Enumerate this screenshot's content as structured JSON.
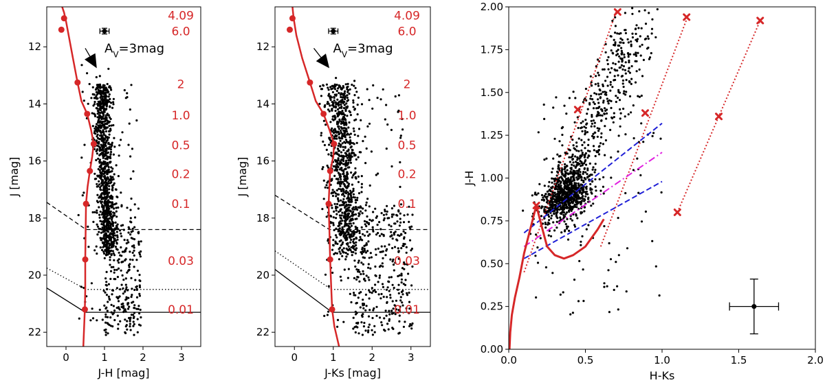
{
  "chart_data": [
    {
      "type": "scatter",
      "panel": "left",
      "xlabel": "J-H [mag]",
      "ylabel": "J [mag]",
      "xlim": [
        -0.5,
        3.5
      ],
      "ylim": [
        22.5,
        10.6
      ],
      "xticks": [
        0,
        1,
        2,
        3
      ],
      "yticks": [
        12,
        14,
        16,
        18,
        20,
        22
      ],
      "av_label": "A",
      "av_sub": "V",
      "av_suffix": "=3mag",
      "mass_labels": [
        {
          "text": "4.09",
          "y": 10.9
        },
        {
          "text": "6.0",
          "y": 11.45
        },
        {
          "text": "2",
          "y": 13.3
        },
        {
          "text": "1.0",
          "y": 14.4
        },
        {
          "text": "0.5",
          "y": 15.45
        },
        {
          "text": "0.2",
          "y": 16.45
        },
        {
          "text": "0.1",
          "y": 17.5
        },
        {
          "text": "0.03",
          "y": 19.5
        },
        {
          "text": "0.01",
          "y": 21.2
        }
      ],
      "isochrone": [
        [
          0.45,
          22.5
        ],
        [
          0.49,
          21.2
        ],
        [
          0.5,
          20.5
        ],
        [
          0.5,
          19.45
        ],
        [
          0.51,
          18.4
        ],
        [
          0.52,
          17.5
        ],
        [
          0.56,
          16.9
        ],
        [
          0.62,
          16.35
        ],
        [
          0.68,
          15.85
        ],
        [
          0.72,
          15.4
        ],
        [
          0.65,
          14.9
        ],
        [
          0.55,
          14.35
        ],
        [
          0.4,
          13.9
        ],
        [
          0.3,
          13.25
        ],
        [
          0.18,
          12.4
        ],
        [
          0.07,
          11.6
        ],
        [
          0.0,
          11.1
        ],
        [
          -0.05,
          10.8
        ],
        [
          -0.1,
          10.6
        ]
      ],
      "mass_points": [
        [
          -0.12,
          11.4
        ],
        [
          -0.05,
          11.0
        ],
        [
          0.3,
          13.25
        ],
        [
          0.55,
          14.35
        ],
        [
          0.72,
          15.4
        ],
        [
          0.62,
          16.35
        ],
        [
          0.52,
          17.5
        ],
        [
          0.5,
          19.45
        ],
        [
          0.49,
          21.2
        ]
      ],
      "error_bar": {
        "x": 1.0,
        "y": 11.45,
        "xerr": 0.12,
        "yerr": 0.1
      },
      "av_arrow": {
        "x0": 0.5,
        "y0": 12.05,
        "x1": 0.8,
        "y1": 12.75
      },
      "limit_dashed": [
        [
          -0.5,
          17.45
        ],
        [
          0.52,
          18.4
        ],
        [
          3.5,
          18.4
        ]
      ],
      "limit_dotted": [
        [
          -0.5,
          19.75
        ],
        [
          0.52,
          20.5
        ],
        [
          3.5,
          20.5
        ]
      ],
      "limit_solid": [
        [
          -0.5,
          20.45
        ],
        [
          0.5,
          21.3
        ],
        [
          3.5,
          21.3
        ]
      ],
      "scatter_cluster": {
        "n": 1300,
        "seed": 11
      }
    },
    {
      "type": "scatter",
      "panel": "middle",
      "xlabel": "J-Ks [mag]",
      "ylabel": "J [mag]",
      "xlim": [
        -0.5,
        3.5
      ],
      "ylim": [
        22.5,
        10.6
      ],
      "xticks": [
        0,
        1,
        2,
        3
      ],
      "yticks": [
        12,
        14,
        16,
        18,
        20,
        22
      ],
      "av_label": "A",
      "av_sub": "V",
      "av_suffix": "=3mag",
      "mass_labels": [
        {
          "text": "4.09",
          "y": 10.9
        },
        {
          "text": "6.0",
          "y": 11.45
        },
        {
          "text": "2",
          "y": 13.3
        },
        {
          "text": "1.0",
          "y": 14.4
        },
        {
          "text": "0.5",
          "y": 15.45
        },
        {
          "text": "0.2",
          "y": 16.45
        },
        {
          "text": "0.1",
          "y": 17.5
        },
        {
          "text": "0.03",
          "y": 19.5
        },
        {
          "text": "0.01",
          "y": 21.2
        }
      ],
      "isochrone": [
        [
          1.15,
          22.5
        ],
        [
          1.03,
          21.8
        ],
        [
          0.97,
          21.2
        ],
        [
          0.95,
          20.5
        ],
        [
          0.92,
          19.45
        ],
        [
          0.9,
          18.4
        ],
        [
          0.88,
          17.5
        ],
        [
          0.9,
          16.9
        ],
        [
          0.92,
          16.35
        ],
        [
          1.0,
          15.85
        ],
        [
          1.02,
          15.4
        ],
        [
          0.9,
          14.9
        ],
        [
          0.75,
          14.35
        ],
        [
          0.55,
          13.9
        ],
        [
          0.4,
          13.25
        ],
        [
          0.2,
          12.4
        ],
        [
          0.05,
          11.6
        ],
        [
          -0.02,
          11.0
        ],
        [
          -0.05,
          10.6
        ]
      ],
      "mass_points": [
        [
          -0.12,
          11.4
        ],
        [
          -0.05,
          11.0
        ],
        [
          0.4,
          13.25
        ],
        [
          0.75,
          14.35
        ],
        [
          1.02,
          15.4
        ],
        [
          0.92,
          16.35
        ],
        [
          0.88,
          17.5
        ],
        [
          0.92,
          19.45
        ],
        [
          0.97,
          21.2
        ]
      ],
      "error_bar": {
        "x": 1.0,
        "y": 11.45,
        "xerr": 0.12,
        "yerr": 0.1
      },
      "av_arrow": {
        "x0": 0.5,
        "y0": 12.05,
        "x1": 0.9,
        "y1": 12.75
      },
      "limit_dashed": [
        [
          -0.5,
          17.2
        ],
        [
          0.9,
          18.4
        ],
        [
          3.5,
          18.4
        ]
      ],
      "limit_dotted": [
        [
          -0.5,
          19.15
        ],
        [
          0.95,
          20.5
        ],
        [
          3.5,
          20.5
        ]
      ],
      "limit_solid": [
        [
          -0.5,
          19.8
        ],
        [
          0.97,
          21.3
        ],
        [
          3.5,
          21.3
        ]
      ],
      "scatter_cluster": {
        "n": 1300,
        "seed": 29
      }
    },
    {
      "type": "scatter",
      "panel": "right",
      "xlabel": "H-Ks",
      "ylabel": "J-H",
      "xlim": [
        0.0,
        2.0
      ],
      "ylim": [
        0.0,
        2.0
      ],
      "xticks": [
        0.0,
        0.5,
        1.0,
        1.5,
        2.0
      ],
      "yticks": [
        0.0,
        0.25,
        0.5,
        0.75,
        1.0,
        1.25,
        1.5,
        1.75,
        2.0
      ],
      "main_sequence": [
        [
          0.005,
          0.0
        ],
        [
          0.01,
          0.1
        ],
        [
          0.02,
          0.2
        ],
        [
          0.04,
          0.3
        ],
        [
          0.07,
          0.42
        ],
        [
          0.1,
          0.56
        ],
        [
          0.14,
          0.7
        ],
        [
          0.18,
          0.84
        ],
        [
          0.22,
          0.7
        ],
        [
          0.25,
          0.6
        ],
        [
          0.3,
          0.55
        ],
        [
          0.36,
          0.53
        ],
        [
          0.42,
          0.55
        ],
        [
          0.5,
          0.6
        ],
        [
          0.58,
          0.7
        ],
        [
          0.62,
          0.76
        ]
      ],
      "main_seq_markers": [
        [
          0.18,
          0.84
        ]
      ],
      "reddening_lines": [
        [
          [
            0.1,
            0.45
          ],
          [
            0.7,
            1.97
          ]
        ],
        [
          [
            0.6,
            0.6
          ],
          [
            1.17,
            1.95
          ]
        ],
        [
          [
            1.1,
            0.8
          ],
          [
            1.64,
            1.92
          ]
        ]
      ],
      "reddening_markers": [
        [
          0.71,
          1.97
        ],
        [
          0.45,
          1.4
        ],
        [
          1.16,
          1.94
        ],
        [
          0.89,
          1.38
        ],
        [
          1.1,
          0.8
        ],
        [
          1.37,
          1.36
        ],
        [
          1.64,
          1.92
        ]
      ],
      "ctts_upper": [
        [
          0.1,
          0.68
        ],
        [
          1.0,
          1.32
        ]
      ],
      "ctts_lower": [
        [
          0.1,
          0.53
        ],
        [
          1.0,
          0.98
        ]
      ],
      "ctts_mid": [
        [
          0.1,
          0.6
        ],
        [
          1.0,
          1.15
        ]
      ],
      "error_bar": {
        "x": 1.6,
        "y": 0.25,
        "xerr": 0.16,
        "yerr": 0.16
      },
      "scatter_cluster": {
        "n": 1300,
        "seed": 53
      }
    }
  ]
}
